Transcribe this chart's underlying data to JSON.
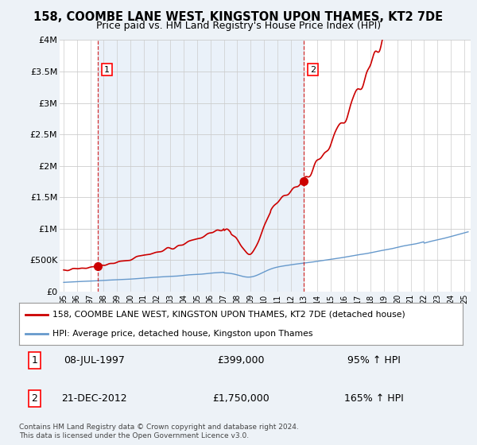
{
  "title": "158, COOMBE LANE WEST, KINGSTON UPON THAMES, KT2 7DE",
  "subtitle": "Price paid vs. HM Land Registry's House Price Index (HPI)",
  "ylim": [
    0,
    4000000
  ],
  "yticks": [
    0,
    500000,
    1000000,
    1500000,
    2000000,
    2500000,
    3000000,
    3500000,
    4000000
  ],
  "ytick_labels": [
    "£0",
    "£500K",
    "£1M",
    "£1.5M",
    "£2M",
    "£2.5M",
    "£3M",
    "£3.5M",
    "£4M"
  ],
  "xlim_start": 1994.7,
  "xlim_end": 2025.5,
  "property_color": "#cc0000",
  "hpi_color": "#6699cc",
  "hpi_fill_color": "#dce9f5",
  "sale1_year": 1997.53,
  "sale1_price": 399000,
  "sale2_year": 2012.97,
  "sale2_price": 1750000,
  "legend_label_property": "158, COOMBE LANE WEST, KINGSTON UPON THAMES, KT2 7DE (detached house)",
  "legend_label_hpi": "HPI: Average price, detached house, Kingston upon Thames",
  "annotation1_date": "08-JUL-1997",
  "annotation1_price": "£399,000",
  "annotation1_hpi": "95% ↑ HPI",
  "annotation2_date": "21-DEC-2012",
  "annotation2_price": "£1,750,000",
  "annotation2_hpi": "165% ↑ HPI",
  "footnote": "Contains HM Land Registry data © Crown copyright and database right 2024.\nThis data is licensed under the Open Government Licence v3.0.",
  "bg_color": "#edf2f7",
  "plot_bg_color": "#ffffff"
}
